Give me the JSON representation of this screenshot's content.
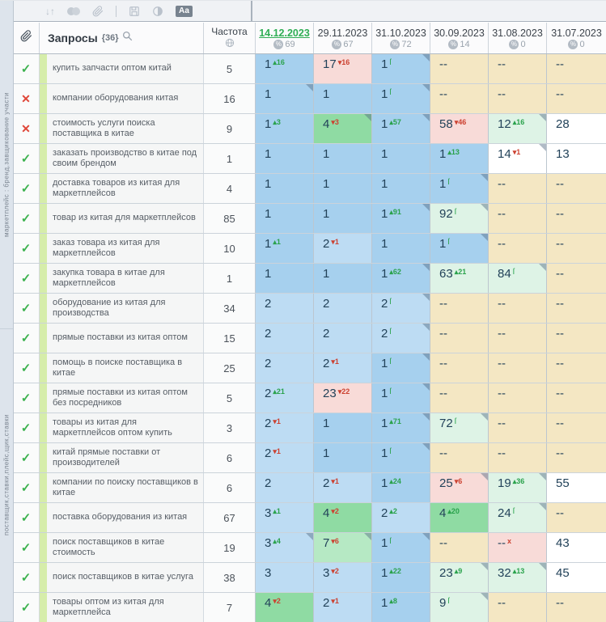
{
  "toolbar": {
    "icons": [
      "sort-icon",
      "toggle-icon",
      "link-icon",
      "save-icon",
      "contrast-icon",
      "font-size-icon"
    ],
    "font_badge": "Аа"
  },
  "header": {
    "queries_label": "Запросы",
    "queries_count": "{36}",
    "frequency_label": "Частота",
    "dates": [
      {
        "label": "14.12.2023",
        "count": "69",
        "selected": true
      },
      {
        "label": "29.11.2023",
        "count": "67",
        "selected": false
      },
      {
        "label": "31.10.2023",
        "count": "72",
        "selected": false
      },
      {
        "label": "30.09.2023",
        "count": "14",
        "selected": false
      },
      {
        "label": "31.08.2023",
        "count": "0",
        "selected": false
      },
      {
        "label": "31.07.2023",
        "count": "0",
        "selected": false
      }
    ]
  },
  "side_strip": {
    "labels": [
      "маркетплейс : бренд,завщикование участи",
      "поставщик,ставки,плейс,щик,ставки"
    ]
  },
  "colors": {
    "accent_green": "#2fae54",
    "sup_red": "#cc4130",
    "top1_blue": "#a6d0ee",
    "top3_blue": "#bddcf3",
    "top10_green": "#8fdba3",
    "improved_light_green": "#def3e6",
    "worsened_pink": "#f8dbd8",
    "no_data_tan": "#f4e7c3",
    "group_strip_green": "#d6edaa"
  },
  "rows": [
    {
      "status": "ok",
      "keyword": "купить запчасти оптом китай",
      "frequency": "5",
      "cells": [
        {
          "v": "1",
          "bg": "p1",
          "sup": {
            "t": "up",
            "n": "16"
          },
          "corner": false
        },
        {
          "v": "17",
          "bg": "pink",
          "sup": {
            "t": "down",
            "n": "16"
          },
          "corner": false
        },
        {
          "v": "1",
          "bg": "p1",
          "sup": {
            "t": "new"
          },
          "corner": true
        },
        {
          "v": "--",
          "bg": "tan"
        },
        {
          "v": "--",
          "bg": "tan"
        },
        {
          "v": "--",
          "bg": "tan"
        }
      ]
    },
    {
      "status": "fail",
      "keyword": "компании оборудования китая",
      "frequency": "16",
      "cells": [
        {
          "v": "1",
          "bg": "p1",
          "corner": true
        },
        {
          "v": "1",
          "bg": "p1"
        },
        {
          "v": "1",
          "bg": "p1",
          "sup": {
            "t": "new"
          },
          "corner": true
        },
        {
          "v": "--",
          "bg": "tan"
        },
        {
          "v": "--",
          "bg": "tan"
        },
        {
          "v": "--",
          "bg": "tan"
        }
      ]
    },
    {
      "status": "fail",
      "keyword": "стоимость услуги поиска поставщика в китае",
      "frequency": "9",
      "cells": [
        {
          "v": "1",
          "bg": "p1",
          "sup": {
            "t": "up",
            "n": "3"
          }
        },
        {
          "v": "4",
          "bg": "p4",
          "sup": {
            "t": "down",
            "n": "3"
          },
          "corner": true
        },
        {
          "v": "1",
          "bg": "p1",
          "sup": {
            "t": "up",
            "n": "57"
          },
          "corner": true
        },
        {
          "v": "58",
          "bg": "pink",
          "sup": {
            "t": "down",
            "n": "46"
          }
        },
        {
          "v": "12",
          "bg": "lg",
          "sup": {
            "t": "up",
            "n": "16"
          },
          "corner": true
        },
        {
          "v": "28",
          "bg": "wh"
        }
      ]
    },
    {
      "status": "ok",
      "keyword": "заказать производство в китае под своим брендом",
      "frequency": "1",
      "cells": [
        {
          "v": "1",
          "bg": "p1"
        },
        {
          "v": "1",
          "bg": "p1"
        },
        {
          "v": "1",
          "bg": "p1"
        },
        {
          "v": "1",
          "bg": "p1",
          "sup": {
            "t": "up",
            "n": "13"
          }
        },
        {
          "v": "14",
          "bg": "wh",
          "sup": {
            "t": "down",
            "n": "1"
          },
          "corner": true
        },
        {
          "v": "13",
          "bg": "wh"
        }
      ]
    },
    {
      "status": "ok",
      "keyword": "доставка товаров из китая для маркетплейсов",
      "frequency": "4",
      "cells": [
        {
          "v": "1",
          "bg": "p1"
        },
        {
          "v": "1",
          "bg": "p1"
        },
        {
          "v": "1",
          "bg": "p1"
        },
        {
          "v": "1",
          "bg": "p1",
          "sup": {
            "t": "new"
          },
          "corner": true
        },
        {
          "v": "--",
          "bg": "tan"
        },
        {
          "v": "--",
          "bg": "tan"
        }
      ]
    },
    {
      "status": "ok",
      "keyword": "товар из китая для маркетплейсов",
      "frequency": "85",
      "cells": [
        {
          "v": "1",
          "bg": "p1"
        },
        {
          "v": "1",
          "bg": "p1"
        },
        {
          "v": "1",
          "bg": "p1",
          "sup": {
            "t": "up",
            "n": "91"
          },
          "corner": true
        },
        {
          "v": "92",
          "bg": "lg",
          "sup": {
            "t": "new"
          },
          "corner": true
        },
        {
          "v": "--",
          "bg": "tan"
        },
        {
          "v": "--",
          "bg": "tan"
        }
      ]
    },
    {
      "status": "ok",
      "keyword": "заказ товара из китая для маркетплейсов",
      "frequency": "10",
      "cells": [
        {
          "v": "1",
          "bg": "p1",
          "sup": {
            "t": "up",
            "n": "1"
          }
        },
        {
          "v": "2",
          "bg": "p2",
          "sup": {
            "t": "down",
            "n": "1"
          }
        },
        {
          "v": "1",
          "bg": "p1"
        },
        {
          "v": "1",
          "bg": "p1",
          "sup": {
            "t": "new"
          },
          "corner": true
        },
        {
          "v": "--",
          "bg": "tan"
        },
        {
          "v": "--",
          "bg": "tan"
        }
      ]
    },
    {
      "status": "ok",
      "keyword": "закупка товара в китае для маркетплейсов",
      "frequency": "1",
      "cells": [
        {
          "v": "1",
          "bg": "p1"
        },
        {
          "v": "1",
          "bg": "p1"
        },
        {
          "v": "1",
          "bg": "p1",
          "sup": {
            "t": "up",
            "n": "62"
          },
          "corner": true
        },
        {
          "v": "63",
          "bg": "lg",
          "sup": {
            "t": "up",
            "n": "21"
          }
        },
        {
          "v": "84",
          "bg": "lg",
          "sup": {
            "t": "new"
          },
          "corner": true
        },
        {
          "v": "--",
          "bg": "tan"
        }
      ]
    },
    {
      "status": "ok",
      "keyword": "оборудование из китая для производства",
      "frequency": "34",
      "cells": [
        {
          "v": "2",
          "bg": "p2"
        },
        {
          "v": "2",
          "bg": "p2"
        },
        {
          "v": "2",
          "bg": "p2",
          "sup": {
            "t": "new"
          },
          "corner": true
        },
        {
          "v": "--",
          "bg": "tan"
        },
        {
          "v": "--",
          "bg": "tan"
        },
        {
          "v": "--",
          "bg": "tan"
        }
      ]
    },
    {
      "status": "ok",
      "keyword": "прямые поставки из китая оптом",
      "frequency": "15",
      "cells": [
        {
          "v": "2",
          "bg": "p2"
        },
        {
          "v": "2",
          "bg": "p2"
        },
        {
          "v": "2",
          "bg": "p2",
          "sup": {
            "t": "new"
          },
          "corner": true
        },
        {
          "v": "--",
          "bg": "tan"
        },
        {
          "v": "--",
          "bg": "tan"
        },
        {
          "v": "--",
          "bg": "tan"
        }
      ]
    },
    {
      "status": "ok",
      "keyword": "помощь в поиске поставщика в китае",
      "frequency": "25",
      "cells": [
        {
          "v": "2",
          "bg": "p2"
        },
        {
          "v": "2",
          "bg": "p2",
          "sup": {
            "t": "down",
            "n": "1"
          }
        },
        {
          "v": "1",
          "bg": "p1",
          "sup": {
            "t": "new"
          },
          "corner": true
        },
        {
          "v": "--",
          "bg": "tan"
        },
        {
          "v": "--",
          "bg": "tan"
        },
        {
          "v": "--",
          "bg": "tan"
        }
      ]
    },
    {
      "status": "ok",
      "keyword": "прямые поставки из китая оптом без посредников",
      "frequency": "5",
      "cells": [
        {
          "v": "2",
          "bg": "p2",
          "sup": {
            "t": "up",
            "n": "21"
          }
        },
        {
          "v": "23",
          "bg": "pink",
          "sup": {
            "t": "down",
            "n": "22"
          }
        },
        {
          "v": "1",
          "bg": "p1",
          "sup": {
            "t": "new"
          },
          "corner": true
        },
        {
          "v": "--",
          "bg": "tan"
        },
        {
          "v": "--",
          "bg": "tan"
        },
        {
          "v": "--",
          "bg": "tan"
        }
      ]
    },
    {
      "status": "ok",
      "keyword": "товары из китая для маркетплейсов оптом купить",
      "frequency": "3",
      "cells": [
        {
          "v": "2",
          "bg": "p2",
          "sup": {
            "t": "down",
            "n": "1"
          }
        },
        {
          "v": "1",
          "bg": "p1"
        },
        {
          "v": "1",
          "bg": "p1",
          "sup": {
            "t": "up",
            "n": "71"
          },
          "corner": true
        },
        {
          "v": "72",
          "bg": "lg",
          "sup": {
            "t": "new"
          },
          "corner": true
        },
        {
          "v": "--",
          "bg": "tan"
        },
        {
          "v": "--",
          "bg": "tan"
        }
      ]
    },
    {
      "status": "ok",
      "keyword": "китай прямые поставки от производителей",
      "frequency": "6",
      "cells": [
        {
          "v": "2",
          "bg": "p2",
          "sup": {
            "t": "down",
            "n": "1"
          }
        },
        {
          "v": "1",
          "bg": "p1"
        },
        {
          "v": "1",
          "bg": "p1",
          "sup": {
            "t": "new"
          },
          "corner": true
        },
        {
          "v": "--",
          "bg": "tan"
        },
        {
          "v": "--",
          "bg": "tan"
        },
        {
          "v": "--",
          "bg": "tan"
        }
      ]
    },
    {
      "status": "ok",
      "keyword": "компании по поиску поставщиков в китае",
      "frequency": "6",
      "cells": [
        {
          "v": "2",
          "bg": "p2"
        },
        {
          "v": "2",
          "bg": "p2",
          "sup": {
            "t": "down",
            "n": "1"
          }
        },
        {
          "v": "1",
          "bg": "p1",
          "sup": {
            "t": "up",
            "n": "24"
          }
        },
        {
          "v": "25",
          "bg": "pink",
          "sup": {
            "t": "down",
            "n": "6"
          },
          "corner": true
        },
        {
          "v": "19",
          "bg": "lg",
          "sup": {
            "t": "up",
            "n": "36"
          },
          "corner": true
        },
        {
          "v": "55",
          "bg": "wh"
        }
      ]
    },
    {
      "status": "ok",
      "keyword": "поставка оборудования из китая",
      "frequency": "67",
      "cells": [
        {
          "v": "3",
          "bg": "p2",
          "sup": {
            "t": "up",
            "n": "1"
          }
        },
        {
          "v": "4",
          "bg": "p4",
          "sup": {
            "t": "down",
            "n": "2"
          }
        },
        {
          "v": "2",
          "bg": "p2",
          "sup": {
            "t": "up",
            "n": "2"
          }
        },
        {
          "v": "4",
          "bg": "p4",
          "sup": {
            "t": "up",
            "n": "20"
          }
        },
        {
          "v": "24",
          "bg": "lg",
          "sup": {
            "t": "new"
          },
          "corner": true
        },
        {
          "v": "--",
          "bg": "tan"
        }
      ]
    },
    {
      "status": "ok",
      "keyword": "поиск поставщиков в китае стоимость",
      "frequency": "19",
      "cells": [
        {
          "v": "3",
          "bg": "p2",
          "sup": {
            "t": "up",
            "n": "4"
          },
          "corner": true
        },
        {
          "v": "7",
          "bg": "p7",
          "sup": {
            "t": "down",
            "n": "6"
          },
          "corner": true
        },
        {
          "v": "1",
          "bg": "p1",
          "sup": {
            "t": "new"
          },
          "corner": true
        },
        {
          "v": "--",
          "bg": "tan"
        },
        {
          "v": "--",
          "bg": "pink",
          "sup": {
            "t": "lost"
          }
        },
        {
          "v": "43",
          "bg": "wh"
        }
      ]
    },
    {
      "status": "ok",
      "keyword": "поиск поставщиков в китае услуга",
      "frequency": "38",
      "cells": [
        {
          "v": "3",
          "bg": "p2"
        },
        {
          "v": "3",
          "bg": "p2",
          "sup": {
            "t": "down",
            "n": "2"
          }
        },
        {
          "v": "1",
          "bg": "p1",
          "sup": {
            "t": "up",
            "n": "22"
          }
        },
        {
          "v": "23",
          "bg": "lg",
          "sup": {
            "t": "up",
            "n": "9"
          },
          "corner": true
        },
        {
          "v": "32",
          "bg": "lg",
          "sup": {
            "t": "up",
            "n": "13"
          },
          "corner": true
        },
        {
          "v": "45",
          "bg": "wh"
        }
      ]
    },
    {
      "status": "ok",
      "keyword": "товары оптом из китая для маркетплейса",
      "frequency": "7",
      "cells": [
        {
          "v": "4",
          "bg": "p4",
          "sup": {
            "t": "down",
            "n": "2"
          }
        },
        {
          "v": "2",
          "bg": "p2",
          "sup": {
            "t": "down",
            "n": "1"
          }
        },
        {
          "v": "1",
          "bg": "p1",
          "sup": {
            "t": "up",
            "n": "8"
          }
        },
        {
          "v": "9",
          "bg": "lg",
          "sup": {
            "t": "new"
          },
          "corner": true
        },
        {
          "v": "--",
          "bg": "tan"
        },
        {
          "v": "--",
          "bg": "tan"
        }
      ]
    }
  ]
}
